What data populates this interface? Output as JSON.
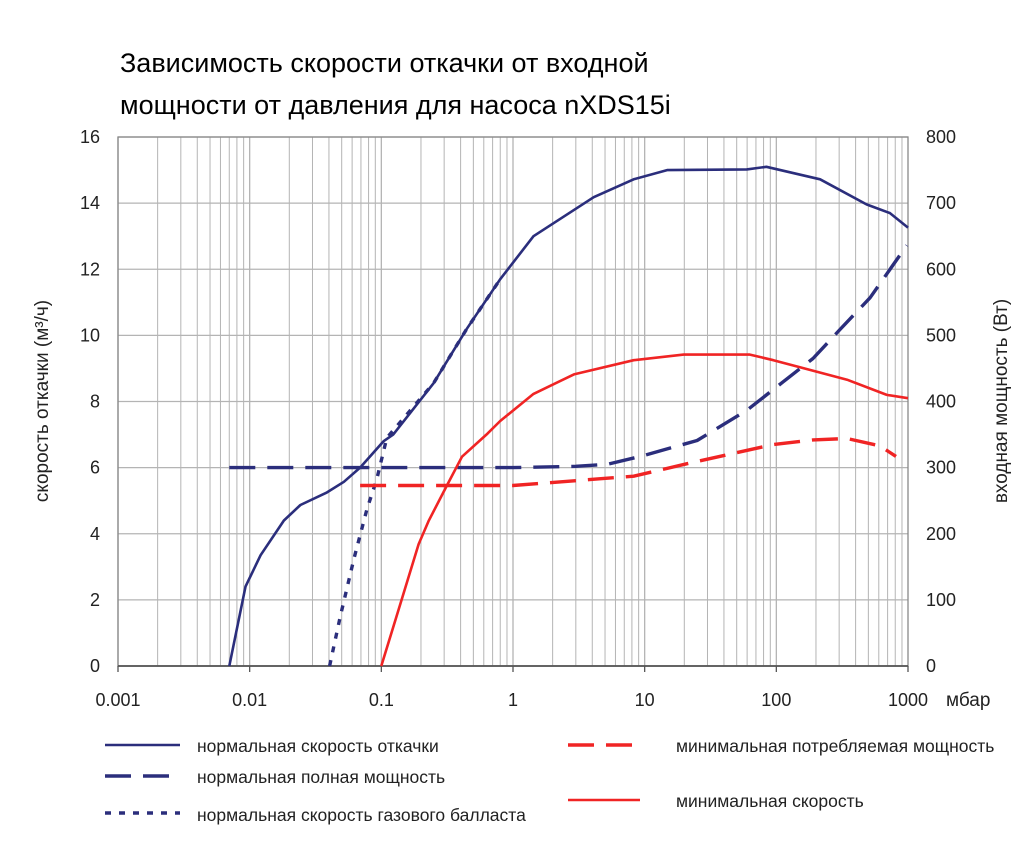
{
  "chart_data": {
    "type": "line",
    "title": "Зависимость скорости откачки от входной мощности от давления для насоса nXDS15i",
    "title_lines": [
      "Зависимость скорости откачки от входной",
      "мощности от давления для насоса nXDS15i"
    ],
    "xlabel": "мбар",
    "ylabel": "скорость откачки (м³/ч)",
    "y2label": "входная мощность (Вт)",
    "xscale": "log",
    "xlim": [
      0.001,
      1000
    ],
    "ylim": [
      0,
      16
    ],
    "y2lim": [
      0,
      800
    ],
    "xticks": [
      "0.001",
      "0.01",
      "0.1",
      "1",
      "10",
      "100",
      "1000"
    ],
    "yticks": [
      "0",
      "2",
      "4",
      "6",
      "8",
      "10",
      "12",
      "14",
      "16"
    ],
    "y2ticks": [
      "0",
      "100",
      "200",
      "300",
      "400",
      "500",
      "600",
      "700",
      "800"
    ],
    "grid": true,
    "legend_position": "bottom",
    "colors": {
      "navy": "#2b2e7c",
      "red": "#f02424",
      "grid": "#b4b4b4"
    },
    "series": [
      {
        "name": "нормальная скорость откачки",
        "axis": "left",
        "color": "#2b2e7c",
        "style": "solid",
        "x": [
          0.007,
          0.0093,
          0.0121,
          0.0182,
          0.0243,
          0.0387,
          0.052,
          0.069,
          0.104,
          0.123,
          0.249,
          0.446,
          0.8,
          1.43,
          4.1,
          8.25,
          14.8,
          59.7,
          84,
          215,
          484,
          728,
          1000
        ],
        "y": [
          0,
          2.4,
          3.35,
          4.4,
          4.87,
          5.25,
          5.57,
          6.0,
          6.8,
          7.0,
          8.55,
          10.2,
          11.7,
          13.0,
          14.18,
          14.72,
          15.0,
          15.02,
          15.1,
          14.72,
          13.96,
          13.7,
          13.26
        ]
      },
      {
        "name": "нормальная полная мощность",
        "axis": "right",
        "color": "#2b2e7c",
        "style": "dashed",
        "x": [
          0.007,
          1,
          3,
          5.2,
          9.3,
          25,
          60,
          113,
          190,
          305,
          515,
          980
        ],
        "y": [
          300,
          300,
          302,
          305,
          317,
          341,
          387,
          430,
          465,
          509,
          557,
          636
        ]
      },
      {
        "name": "нормальная скорость газового балласта",
        "axis": "left",
        "color": "#2b2e7c",
        "style": "dotted",
        "x": [
          0.0405,
          0.0488,
          0.062,
          0.078,
          0.092,
          0.11,
          0.249,
          0.446,
          0.8
        ],
        "y": [
          0,
          1.5,
          3.25,
          4.76,
          5.63,
          6.9,
          8.55,
          10.2,
          11.7
        ]
      },
      {
        "name": "минимальная потребляемая мощность",
        "axis": "right",
        "color": "#f02424",
        "style": "dashed",
        "x": [
          0.069,
          1,
          8.25,
          21,
          95,
          190,
          345,
          610,
          810
        ],
        "y": [
          273,
          273,
          287,
          306,
          335,
          342,
          344,
          333,
          317
        ]
      },
      {
        "name": "минимальная скорость",
        "axis": "left",
        "color": "#f02424",
        "style": "solid",
        "x": [
          0.1,
          0.144,
          0.192,
          0.228,
          0.316,
          0.41,
          0.64,
          0.8,
          1.43,
          2.9,
          8.25,
          19.8,
          63,
          95,
          150,
          345,
          690,
          1000
        ],
        "y": [
          0,
          2.06,
          3.68,
          4.38,
          5.47,
          6.33,
          7.03,
          7.41,
          8.23,
          8.82,
          9.25,
          9.42,
          9.42,
          9.25,
          9.04,
          8.66,
          8.2,
          8.1
        ]
      }
    ],
    "legend": [
      {
        "label": "нормальная скорость откачки"
      },
      {
        "label": "нормальная полная мощность"
      },
      {
        "label": "нормальная скорость газового балласта"
      },
      {
        "label": "минимальная потребляемая мощность"
      },
      {
        "label": "минимальная скорость"
      }
    ]
  }
}
